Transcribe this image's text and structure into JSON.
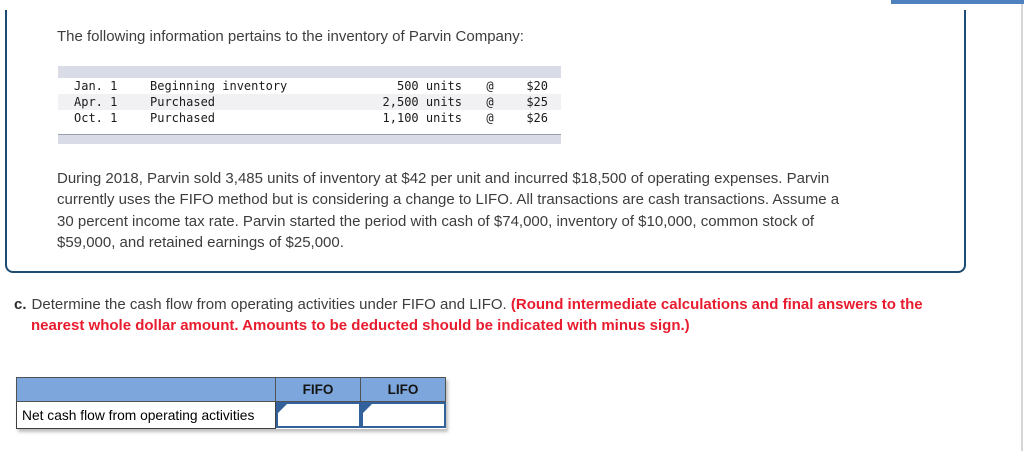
{
  "colors": {
    "accent_blue": "#4e81bd",
    "card_border_navy": "#1c4b74",
    "inventory_stripe": "#d9dce6",
    "answer_header_blue": "#7da7dc",
    "input_border_blue": "#32619b",
    "alert_red": "#e81c2e"
  },
  "problem": {
    "intro": "The following information pertains to the inventory of Parvin Company:",
    "inventory_rows": [
      {
        "date": "Jan. 1",
        "description": "Beginning inventory",
        "units": "500 units",
        "at": "@",
        "price": "$20"
      },
      {
        "date": "Apr. 1",
        "description": "Purchased",
        "units": "2,500 units",
        "at": "@",
        "price": "$25"
      },
      {
        "date": "Oct. 1",
        "description": "Purchased",
        "units": "1,100 units",
        "at": "@",
        "price": "$26"
      }
    ],
    "paragraph_lines": [
      "During 2018, Parvin sold 3,485 units of inventory at $42 per unit and incurred $18,500 of operating expenses. Parvin",
      "currently uses the FIFO method but is considering a change to LIFO. All transactions are cash transactions. Assume a",
      "30 percent income tax rate. Parvin started the period with cash of $74,000, inventory of $10,000, common stock of",
      "$59,000, and retained earnings of $25,000."
    ]
  },
  "requirement": {
    "label": "c.",
    "text": "Determine the cash flow from operating activities under FIFO and LIFO.",
    "note_line1": "(Round intermediate calculations and final answers to the",
    "note_line2": "nearest whole dollar amount. Amounts to be deducted should be indicated with minus sign.)"
  },
  "answer_table": {
    "columns": [
      "FIFO",
      "LIFO"
    ],
    "rows": [
      {
        "label": "Net cash flow from operating activities",
        "fifo_value": "",
        "lifo_value": ""
      }
    ]
  }
}
